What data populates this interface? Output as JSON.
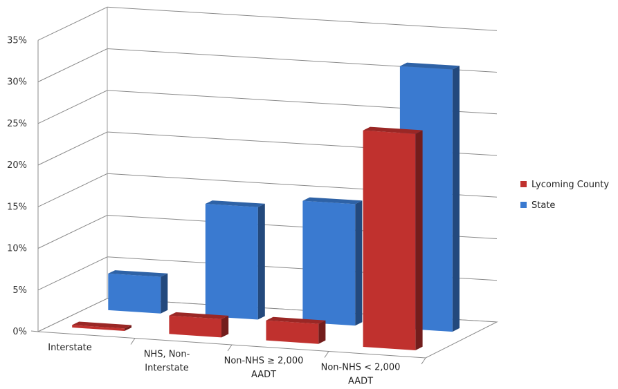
{
  "chart_data": {
    "type": "bar",
    "categories": [
      [
        "Interstate"
      ],
      [
        "NHS, Non-",
        "Interstate"
      ],
      [
        "Non-NHS ≥ 2,000",
        "AADT"
      ],
      [
        "Non-NHS < 2,000",
        "AADT"
      ]
    ],
    "series": [
      {
        "name": "Lycoming County",
        "color": "#c0312e",
        "values": [
          0.3,
          2.2,
          2.4,
          26.0
        ]
      },
      {
        "name": "State",
        "color": "#3a7ad0",
        "values": [
          4.4,
          13.5,
          14.6,
          31.5
        ]
      }
    ],
    "ylim": [
      0,
      35
    ],
    "yticks": [
      "0%",
      "5%",
      "10%",
      "15%",
      "20%",
      "25%",
      "30%",
      "35%"
    ],
    "grid": true,
    "legend_position": "right",
    "style": "3d-clustered-column"
  }
}
